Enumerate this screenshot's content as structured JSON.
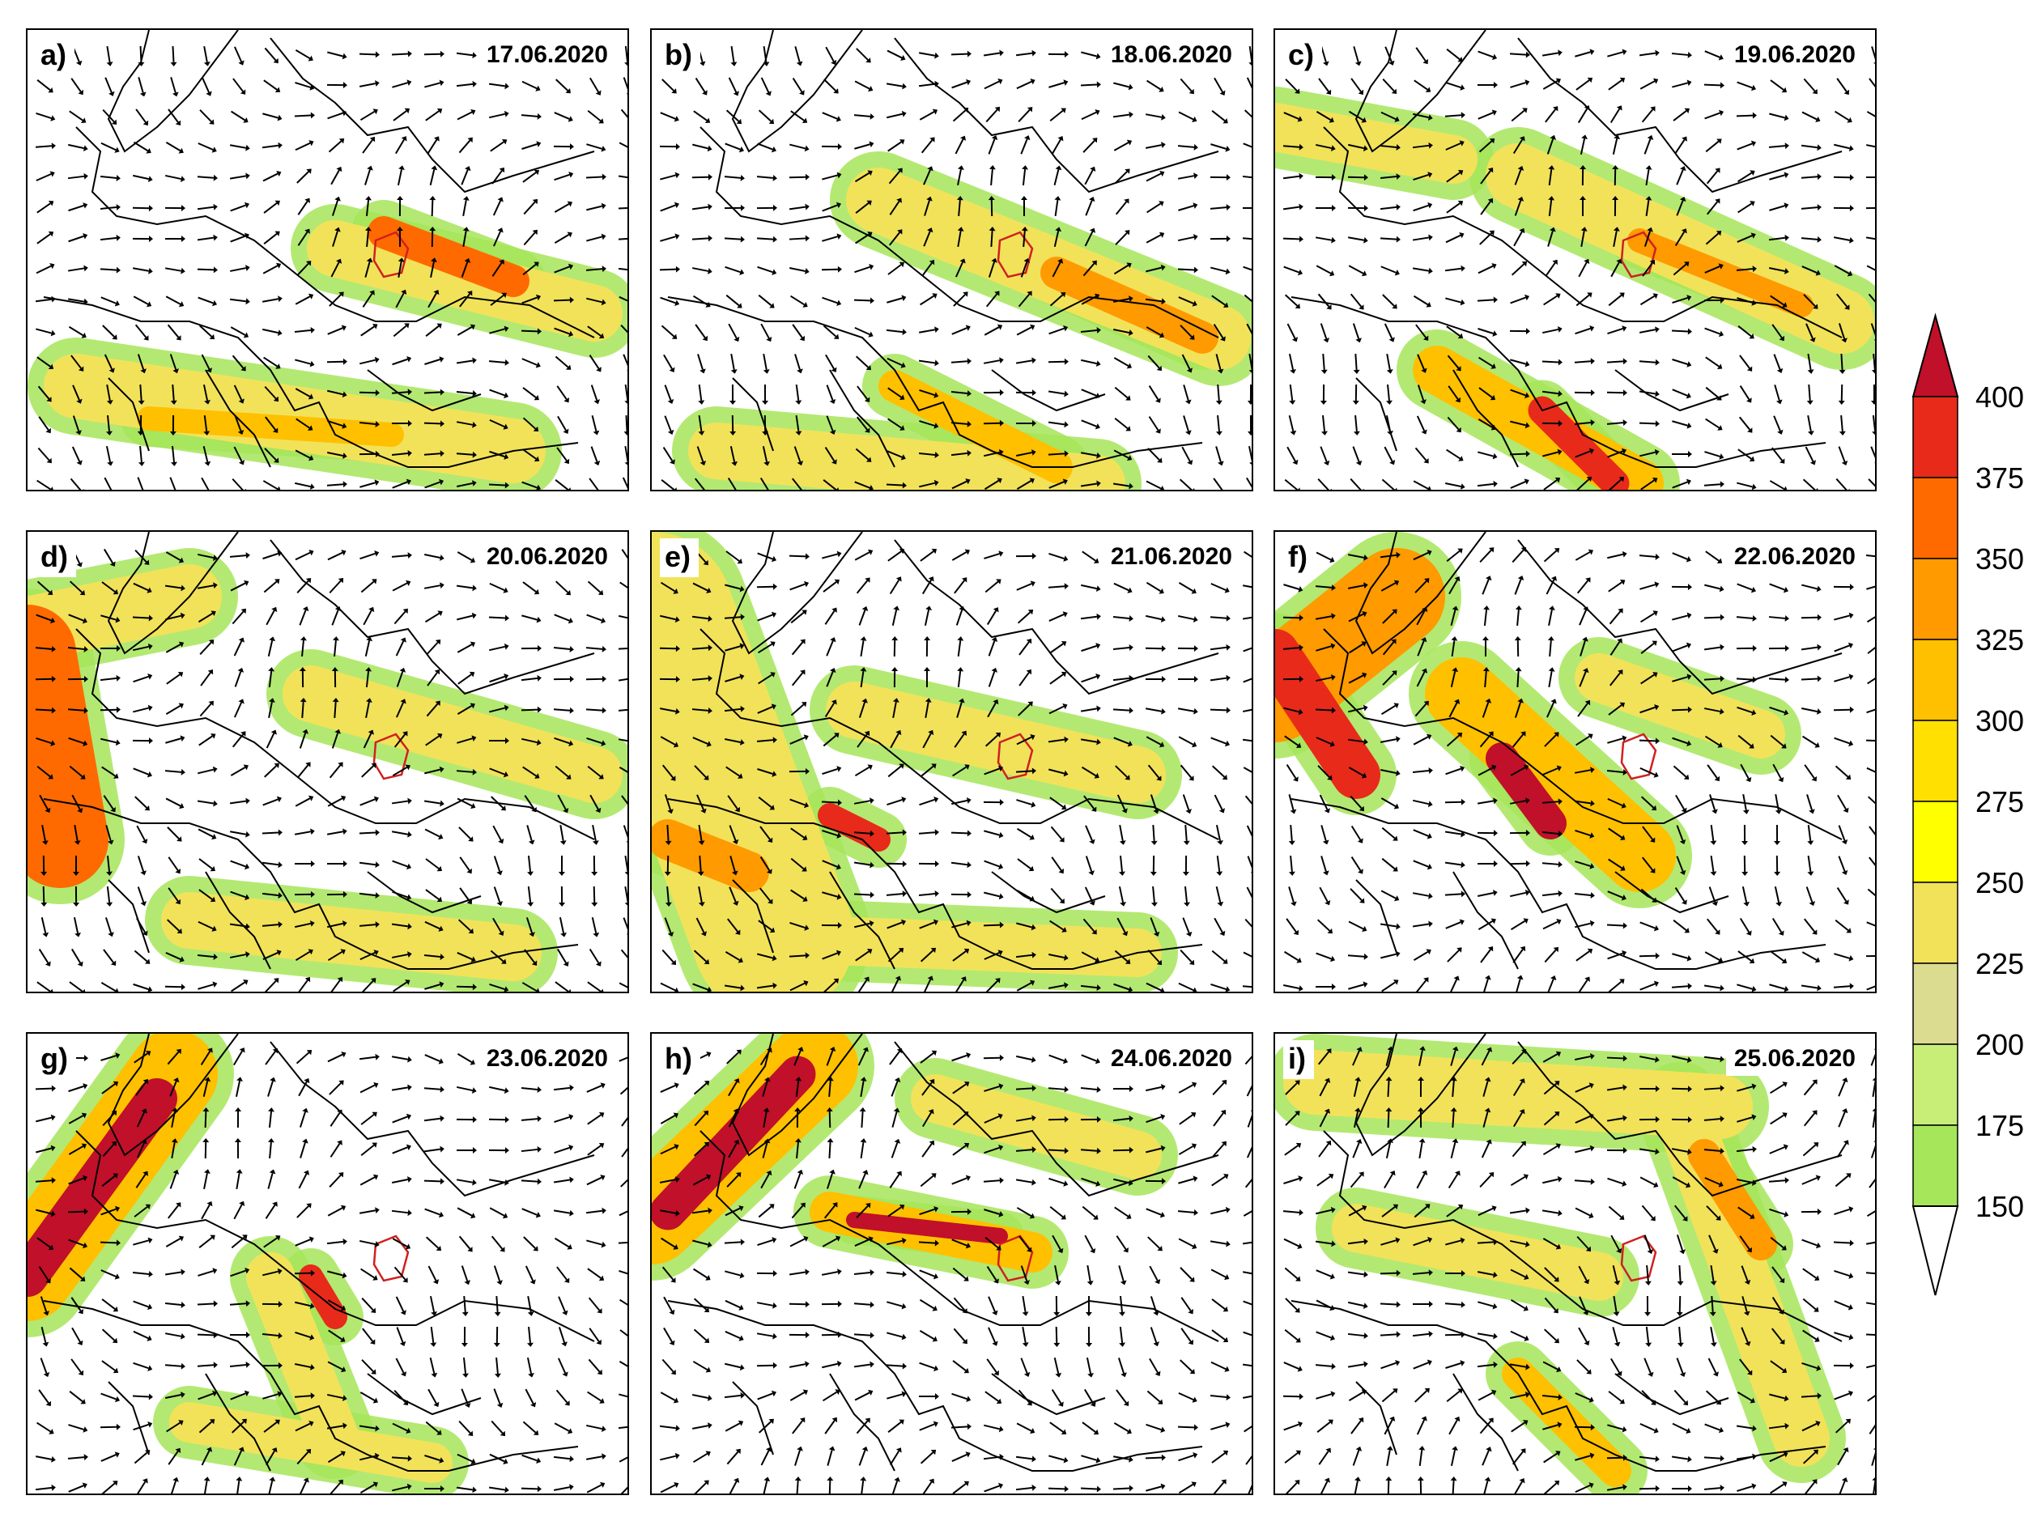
{
  "panels": [
    {
      "letter": "a)",
      "date": "17.06.2020"
    },
    {
      "letter": "b)",
      "date": "18.06.2020"
    },
    {
      "letter": "c)",
      "date": "19.06.2020"
    },
    {
      "letter": "d)",
      "date": "20.06.2020"
    },
    {
      "letter": "e)",
      "date": "21.06.2020"
    },
    {
      "letter": "f)",
      "date": "22.06.2020"
    },
    {
      "letter": "g)",
      "date": "23.06.2020"
    },
    {
      "letter": "h)",
      "date": "24.06.2020"
    },
    {
      "letter": "i)",
      "date": "25.06.2020"
    }
  ],
  "colorbar": {
    "ticks": [
      "400",
      "375",
      "350",
      "325",
      "300",
      "275",
      "250",
      "225",
      "200",
      "175",
      "150"
    ],
    "colors": [
      "#ffffff",
      "#a6e65a",
      "#c8ee78",
      "#dcdc90",
      "#f2e25a",
      "#ffff00",
      "#ffe000",
      "#ffc000",
      "#ff9a00",
      "#ff6a00",
      "#e82a1a",
      "#c0102a"
    ]
  }
}
